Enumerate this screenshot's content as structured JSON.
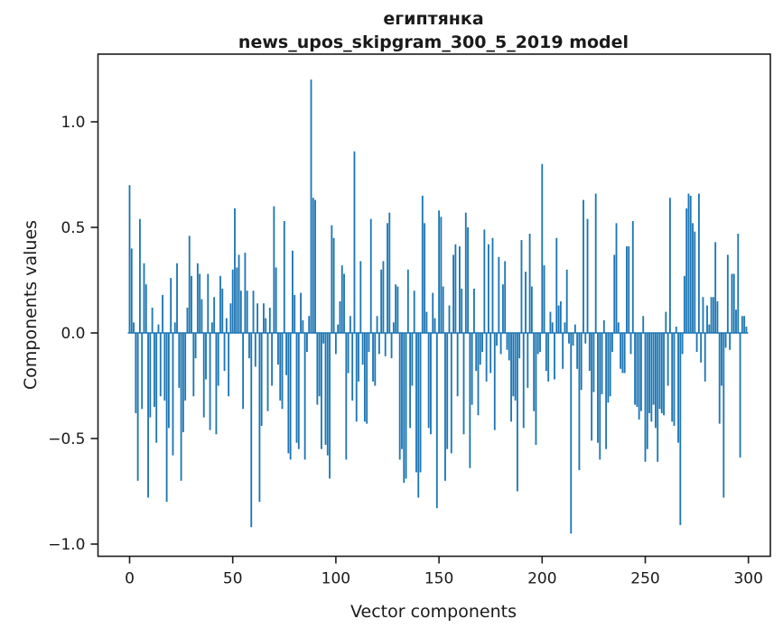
{
  "chart_data": {
    "type": "bar",
    "title_line1": "египтянка",
    "title_line2": "news_upos_skipgram_300_5_2019 model",
    "xlabel": "Vector components",
    "ylabel": "Components values",
    "grid": false,
    "legend": null,
    "n_components": 300,
    "xlim": [
      -16,
      311
    ],
    "ylim": [
      -1.06,
      1.32
    ],
    "x_ticks": [
      {
        "v": 0,
        "label": "0"
      },
      {
        "v": 50,
        "label": "50"
      },
      {
        "v": 100,
        "label": "100"
      },
      {
        "v": 150,
        "label": "150"
      },
      {
        "v": 200,
        "label": "200"
      },
      {
        "v": 250,
        "label": "250"
      },
      {
        "v": 300,
        "label": "300"
      }
    ],
    "y_ticks": [
      {
        "v": 1.0,
        "label": "1.0"
      },
      {
        "v": 0.5,
        "label": "0.5"
      },
      {
        "v": 0.0,
        "label": "0.0"
      },
      {
        "v": -0.5,
        "label": "−0.5"
      },
      {
        "v": -1.0,
        "label": "−1.0"
      }
    ],
    "colors": {
      "bar": "#1f77b4",
      "spine": "#1c1c1c",
      "text": "#1a1a1a",
      "background": "#ffffff"
    },
    "values": [
      0.7,
      0.4,
      0.05,
      -0.38,
      -0.7,
      0.54,
      -0.36,
      0.33,
      0.23,
      -0.78,
      -0.4,
      0.12,
      -0.35,
      -0.52,
      0.04,
      -0.3,
      0.18,
      -0.32,
      -0.8,
      -0.45,
      0.26,
      -0.58,
      0.05,
      0.33,
      -0.26,
      -0.7,
      -0.47,
      -0.32,
      0.12,
      0.46,
      0.27,
      -0.3,
      -0.12,
      0.33,
      0.28,
      0.16,
      -0.4,
      -0.22,
      0.28,
      -0.46,
      0.05,
      0.17,
      -0.48,
      -0.25,
      0.27,
      0.21,
      -0.18,
      0.07,
      -0.3,
      0.14,
      0.3,
      0.59,
      0.31,
      0.37,
      0.2,
      -0.36,
      0.38,
      0.2,
      -0.12,
      -0.92,
      0.2,
      -0.16,
      0.14,
      -0.8,
      -0.44,
      0.14,
      0.07,
      -0.37,
      0.12,
      -0.25,
      0.6,
      0.31,
      -0.15,
      -0.32,
      -0.36,
      0.53,
      -0.2,
      -0.57,
      -0.6,
      0.39,
      0.18,
      -0.52,
      -0.55,
      0.19,
      0.06,
      -0.6,
      -0.09,
      0.08,
      1.2,
      0.64,
      0.63,
      -0.34,
      -0.3,
      -0.55,
      -0.05,
      -0.53,
      -0.58,
      -0.69,
      0.51,
      0.45,
      -0.1,
      0.04,
      0.15,
      0.32,
      0.28,
      -0.6,
      -0.19,
      0.08,
      -0.32,
      0.86,
      -0.42,
      -0.23,
      0.34,
      -0.15,
      -0.42,
      -0.43,
      -0.09,
      0.54,
      -0.23,
      -0.25,
      0.08,
      -0.1,
      0.3,
      0.34,
      -0.11,
      0.52,
      0.57,
      -0.12,
      0.05,
      0.23,
      0.22,
      -0.6,
      -0.55,
      -0.71,
      -0.69,
      0.3,
      -0.45,
      -0.25,
      0.2,
      -0.66,
      -0.78,
      -0.66,
      0.65,
      0.52,
      0.1,
      -0.45,
      -0.48,
      0.19,
      0.07,
      -0.83,
      0.58,
      0.55,
      0.22,
      -0.7,
      -0.55,
      0.13,
      -0.57,
      0.37,
      0.42,
      -0.3,
      0.41,
      0.21,
      -0.48,
      0.57,
      0.5,
      -0.64,
      -0.34,
      0.21,
      -0.18,
      -0.39,
      -0.15,
      -0.09,
      0.49,
      -0.23,
      0.42,
      -0.19,
      0.45,
      -0.46,
      -0.06,
      0.36,
      -0.1,
      0.23,
      0.34,
      -0.08,
      -0.13,
      -0.42,
      -0.3,
      -0.32,
      -0.75,
      -0.12,
      0.44,
      -0.45,
      0.29,
      -0.26,
      0.47,
      0.22,
      -0.37,
      -0.53,
      -0.1,
      -0.09,
      0.8,
      0.32,
      -0.18,
      -0.23,
      0.1,
      0.05,
      -0.22,
      0.45,
      0.13,
      0.15,
      -0.17,
      0.05,
      0.3,
      -0.05,
      -0.95,
      -0.06,
      0.04,
      -0.17,
      -0.65,
      -0.27,
      0.63,
      -0.05,
      0.54,
      -0.18,
      -0.51,
      -0.28,
      0.66,
      -0.52,
      -0.6,
      -0.29,
      0.06,
      -0.55,
      -0.33,
      -0.3,
      -0.09,
      0.37,
      0.52,
      0.05,
      -0.17,
      -0.19,
      -0.19,
      0.41,
      0.41,
      -0.1,
      0.53,
      -0.34,
      -0.35,
      -0.41,
      -0.37,
      0.08,
      -0.61,
      -0.55,
      -0.38,
      -0.42,
      -0.34,
      -0.45,
      -0.61,
      -0.36,
      -0.38,
      -0.39,
      0.1,
      -0.25,
      0.64,
      -0.42,
      -0.44,
      0.03,
      -0.52,
      -0.91,
      -0.1,
      0.27,
      0.59,
      0.66,
      0.65,
      0.52,
      0.48,
      -0.09,
      0.66,
      -0.14,
      0.17,
      -0.23,
      0.13,
      0.04,
      0.17,
      0.17,
      0.43,
      0.15,
      -0.43,
      -0.25,
      -0.78,
      -0.07,
      0.37,
      -0.08,
      0.28,
      0.28,
      0.11,
      0.47,
      -0.59,
      0.08,
      0.08,
      0.03
    ]
  }
}
